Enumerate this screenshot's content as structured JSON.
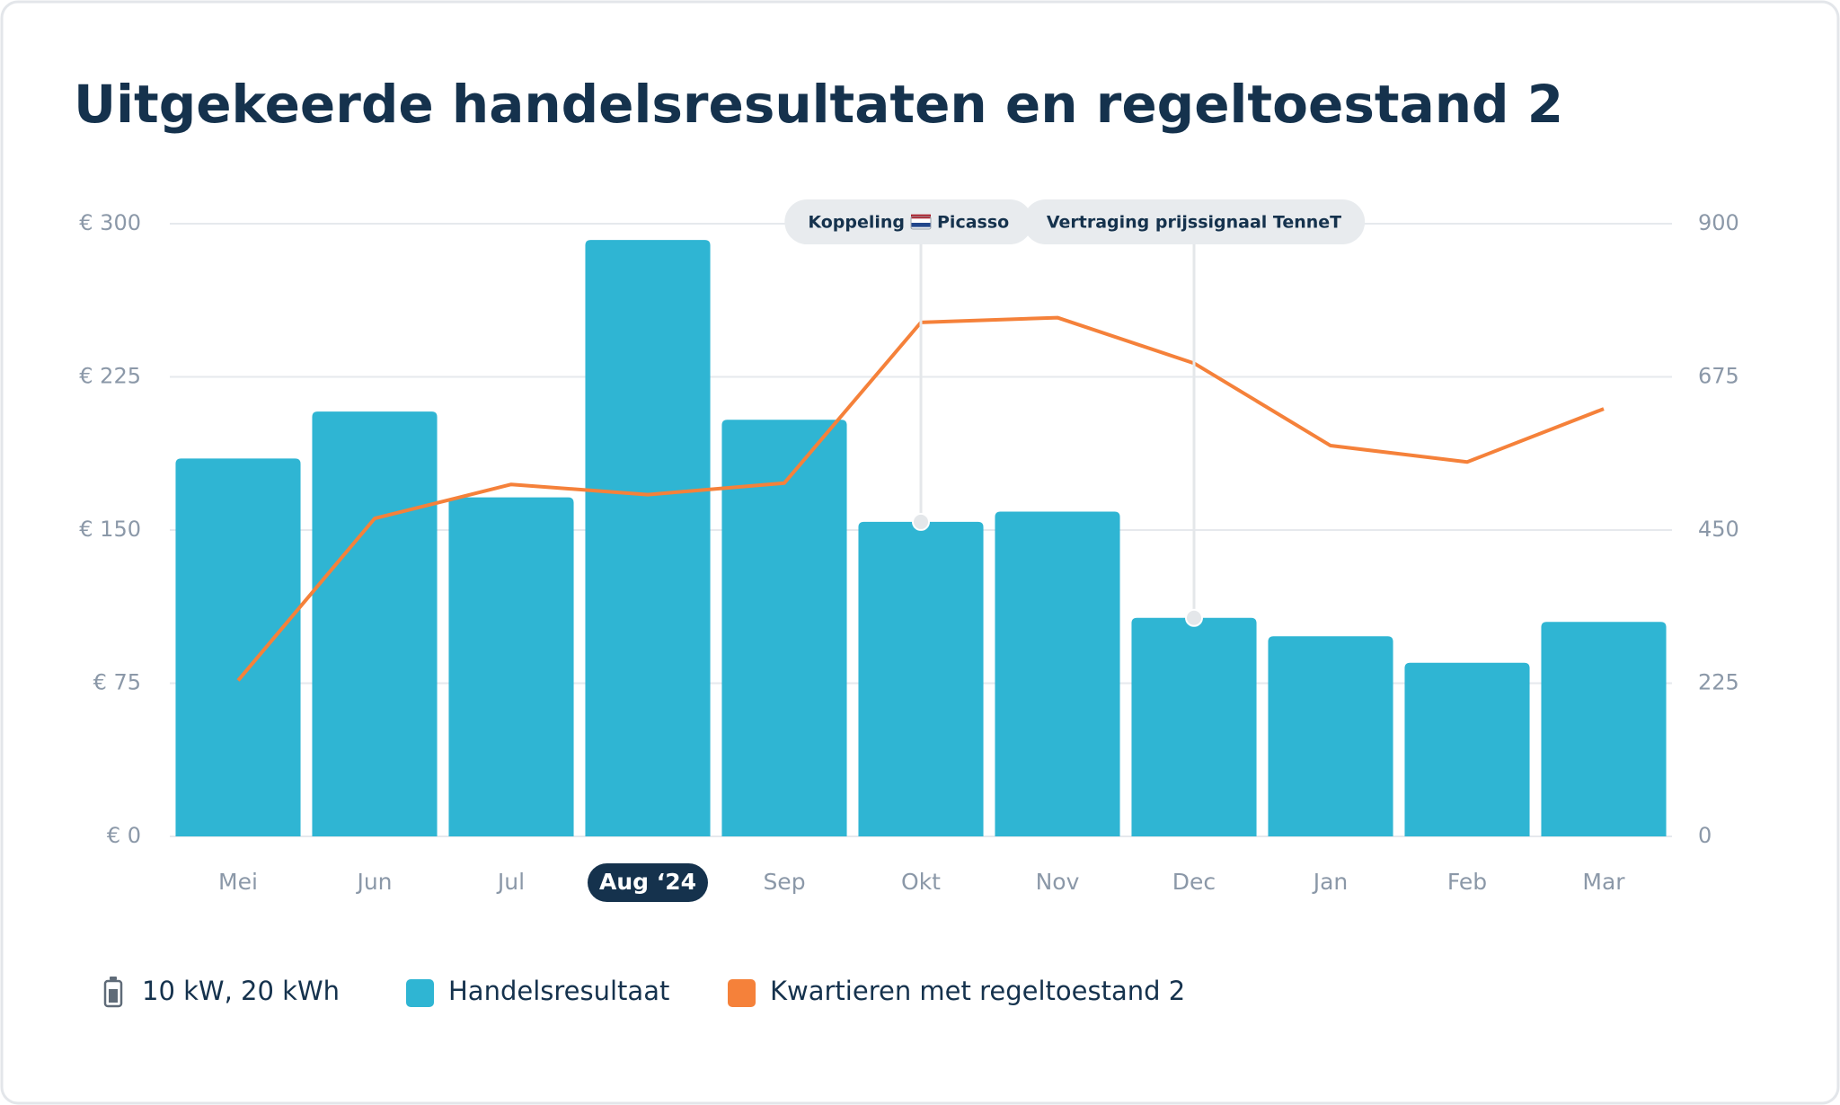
{
  "chart_data": {
    "type": "bar-line",
    "title": "Uitgekeerde handelsresultaten en regeltoestand 2",
    "categories": [
      "Mei",
      "Jun",
      "Jul",
      "Aug ‘24",
      "Sep",
      "Okt",
      "Nov",
      "Dec",
      "Jan",
      "Feb",
      "Mar"
    ],
    "highlight": "Aug ‘24",
    "series": [
      {
        "name": "Handelsresultaat",
        "type": "bar",
        "color": "#2fb5d3",
        "values": [
          185,
          208,
          166,
          292,
          204,
          154,
          159,
          107,
          98,
          85,
          105
        ]
      },
      {
        "name": "Kwartieren met regeltoestand 2",
        "type": "line",
        "axis": "y2",
        "color": "#f5813a",
        "values": [
          229,
          467,
          517,
          502,
          519,
          755,
          762,
          695,
          574,
          550,
          628
        ]
      }
    ],
    "ylim": [
      0,
      300
    ],
    "yticks": [
      {
        "value": 0,
        "label": "€ 0"
      },
      {
        "value": 75,
        "label": "€ 75"
      },
      {
        "value": 150,
        "label": "€ 150"
      },
      {
        "value": 225,
        "label": "€ 225"
      },
      {
        "value": 300,
        "label": "€ 300"
      }
    ],
    "y2lim": [
      0,
      900
    ],
    "y2ticks": [
      0,
      225,
      450,
      675,
      900
    ],
    "grid": true,
    "annotations": [
      {
        "category": "Okt",
        "text": [
          "Koppeling",
          "Picasso"
        ]
      },
      {
        "category": "Dec",
        "text": [
          "Vertraging prijssignaal TenneT"
        ]
      }
    ],
    "legend_note": "10 kW, 20 kWh"
  }
}
